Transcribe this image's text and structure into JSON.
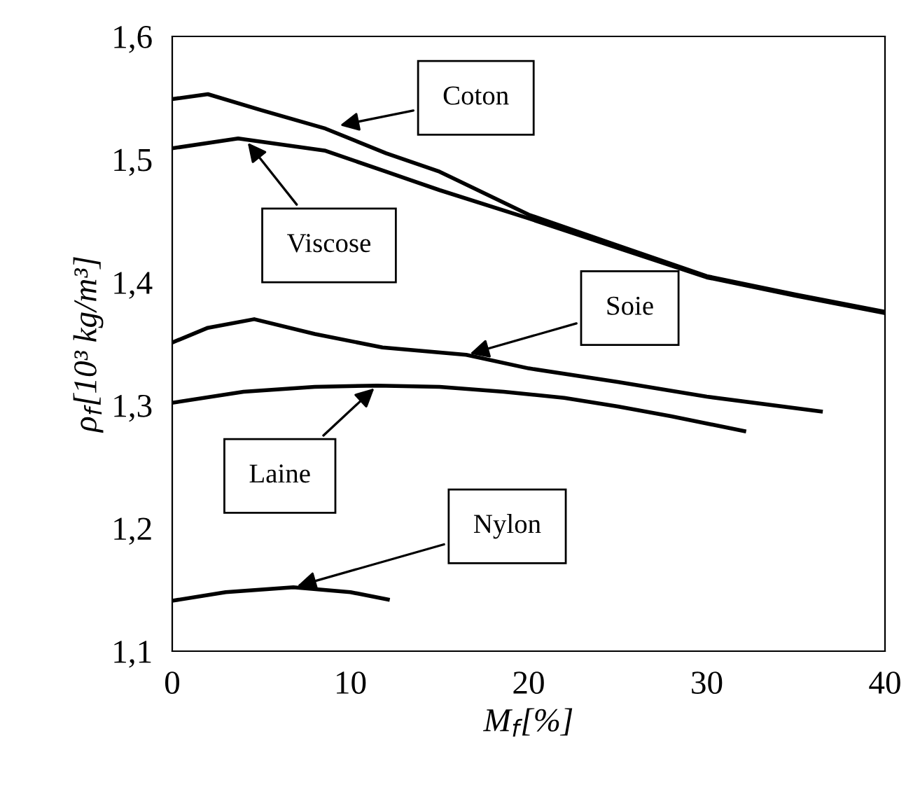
{
  "chart_data": {
    "type": "line",
    "xlabel": "M$_{f}$[%]",
    "ylabel": "ρ$_{f}$[10³ kg/m³]",
    "xlim": [
      0,
      40
    ],
    "xticks": [
      0,
      10,
      20,
      30,
      40
    ],
    "ylim": [
      1.1,
      1.6
    ],
    "yticks": [
      {
        "value": 1.1,
        "label": "1,1"
      },
      {
        "value": 1.2,
        "label": "1,2"
      },
      {
        "value": 1.3,
        "label": "1,3"
      },
      {
        "value": 1.4,
        "label": "1,4"
      },
      {
        "value": 1.5,
        "label": "1,5"
      },
      {
        "value": 1.6,
        "label": "1,6"
      }
    ],
    "grid": false,
    "legend": false,
    "marker": "none",
    "line_style": "solid",
    "series": [
      {
        "color": "#000000",
        "x": [
          0,
          2,
          5,
          8.6,
          12,
          15,
          20,
          25,
          30,
          35,
          40
        ],
        "values": [
          1.549,
          1.553,
          1.54,
          1.525,
          1.505,
          1.49,
          1.455,
          1.43,
          1.405,
          1.39,
          1.376
        ]
      },
      {
        "color": "#000000",
        "x": [
          0,
          3.7,
          8.6,
          12,
          15,
          20,
          25,
          30,
          35,
          40
        ],
        "values": [
          1.509,
          1.517,
          1.507,
          1.49,
          1.475,
          1.452,
          1.428,
          1.404,
          1.389,
          1.375
        ]
      },
      {
        "color": "#000000",
        "x": [
          0,
          2,
          4.6,
          8,
          11.8,
          16.5,
          20,
          25,
          30,
          36.4
        ],
        "values": [
          1.351,
          1.363,
          1.37,
          1.358,
          1.347,
          1.341,
          1.33,
          1.319,
          1.307,
          1.295
        ]
      },
      {
        "color": "#000000",
        "x": [
          0,
          4,
          8,
          11.5,
          15,
          18.6,
          22,
          25,
          28,
          32.1
        ],
        "values": [
          1.302,
          1.311,
          1.315,
          1.316,
          1.315,
          1.311,
          1.306,
          1.299,
          1.291,
          1.279
        ]
      },
      {
        "color": "#000000",
        "x": [
          0,
          3,
          6.8,
          10,
          12.1
        ],
        "values": [
          1.141,
          1.148,
          1.152,
          1.148,
          1.142
        ]
      }
    ],
    "annotations": [
      {
        "text": "Coton",
        "x": 9.2,
        "y": 1.527
      },
      {
        "text": "Viscose",
        "x": 4.1,
        "y": 1.516
      },
      {
        "text": "Soie",
        "x": 16.5,
        "y": 1.341
      },
      {
        "text": "Laine",
        "x": 11.5,
        "y": 1.316
      },
      {
        "text": "Nylon",
        "x": 6.8,
        "y": 1.152
      }
    ]
  }
}
